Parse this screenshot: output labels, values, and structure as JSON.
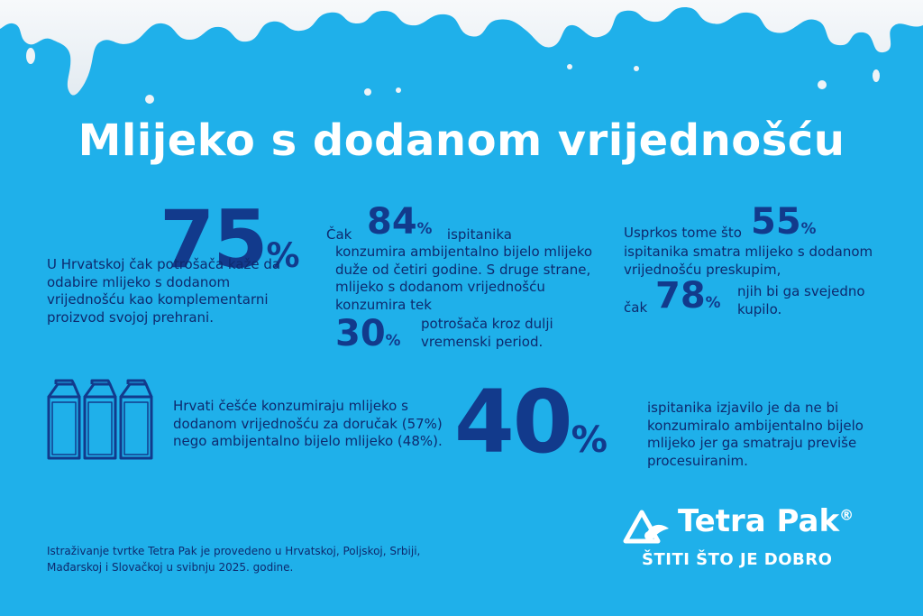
{
  "title": "Mlijeko s dodanom vrijednošću",
  "stat1": {
    "value": "75",
    "pct": "%",
    "text": "U Hrvatskoj čak potrošača kaže da odabire mlijeko s dodanom vrijednošću kao komplementarni proizvod svojoj prehrani."
  },
  "stat2": {
    "prefix": "Čak",
    "value1": "84",
    "pct": "%",
    "after1": "ispitanika",
    "body": "konzumira ambijentalno bijelo mlijeko duže od četiri godine. S druge strane, mlijeko s dodanom vrijednošću konzumira tek",
    "value2": "30",
    "tail": "potrošača kroz dulji vremenski period."
  },
  "stat3": {
    "head": "Usprkos tome što",
    "value1": "55",
    "pct": "%",
    "body": "ispitanika smatra mlijeko s dodanom vrijednošću preskupim,",
    "cak": "čak",
    "value2": "78",
    "tail": "njih bi ga svejedno kupilo."
  },
  "stat4": {
    "icon": "milk-carton-icon",
    "text": "Hrvati češće konzumiraju mlijeko s dodanom vrijednošću za doručak (57%) nego ambijentalno bijelo mlijeko (48%)."
  },
  "stat5": {
    "value": "40",
    "pct": "%",
    "text": "ispitanika izjavilo je da ne bi konzumiralo ambijentalno bijelo mlijeko jer ga smatraju previše procesuiranim."
  },
  "source": "Istraživanje tvrtke Tetra Pak je provedeno u Hrvatskoj, Poljskoj, Srbiji, Mađarskoj i Slovačkoj u svibnju 2025. godine.",
  "logo": {
    "name": "Tetra Pak",
    "reg": "®",
    "tagline": "ŠTITI ŠTO JE DOBRO",
    "icon": "tetra-pak-logo-icon"
  },
  "colors": {
    "background": "#1fb0ea",
    "number": "#123a8c",
    "text": "#0e2a6e",
    "milk": "#ffffff"
  }
}
